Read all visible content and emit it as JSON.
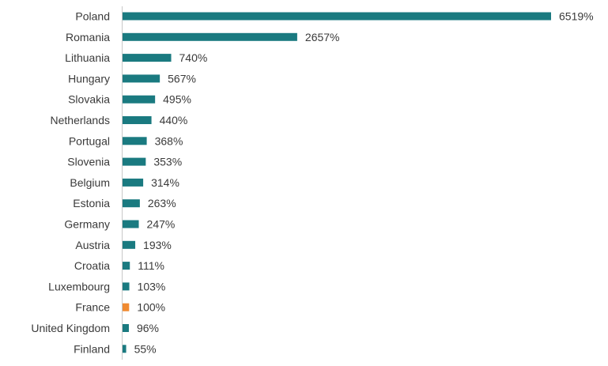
{
  "chart_data": {
    "type": "bar",
    "orientation": "horizontal",
    "title": "",
    "xlabel": "",
    "ylabel": "",
    "value_suffix": "%",
    "categories": [
      "Poland",
      "Romania",
      "Lithuania",
      "Hungary",
      "Slovakia",
      "Netherlands",
      "Portugal",
      "Slovenia",
      "Belgium",
      "Estonia",
      "Germany",
      "Austria",
      "Croatia",
      "Luxembourg",
      "France",
      "United Kingdom",
      "Finland"
    ],
    "values": [
      6519,
      2657,
      740,
      567,
      495,
      440,
      368,
      353,
      314,
      263,
      247,
      193,
      111,
      103,
      100,
      96,
      55
    ],
    "value_labels": [
      "6519%",
      "2657%",
      "740%",
      "567%",
      "495%",
      "440%",
      "368%",
      "353%",
      "314%",
      "263%",
      "247%",
      "193%",
      "111%",
      "103%",
      "100%",
      "96%",
      "55%"
    ],
    "highlight_category": "France",
    "colors": {
      "default": "#1a7a80",
      "highlight": "#f08a30",
      "axis": "#c8c8c8"
    },
    "grid": false,
    "legend": "none",
    "xlim": [
      0,
      6519
    ]
  }
}
